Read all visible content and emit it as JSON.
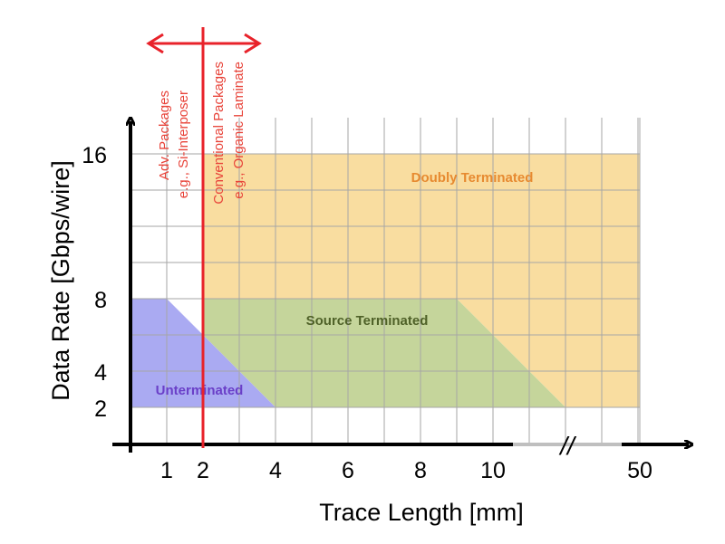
{
  "chart_data": {
    "type": "area",
    "xlabel": "Trace Length [mm]",
    "ylabel": "Data Rate [Gbps/wire]",
    "x_ticks": [
      "1",
      "2",
      "4",
      "6",
      "8",
      "10",
      "50"
    ],
    "y_ticks": [
      "2",
      "4",
      "8",
      "16"
    ],
    "axis_break_label": "//",
    "grid": true,
    "colors": {
      "unterminated": "#aaaaf2",
      "source_terminated": "#c5d59b",
      "doubly_terminated": "#f9dda0",
      "doubly_label": "#e78a30",
      "source_label": "#4f6128",
      "unterminated_label": "#6a3fc8",
      "boundary": "#e8222a",
      "grid": "#a6a6a6"
    },
    "regions": [
      {
        "name": "Unterminated",
        "points": [
          [
            0.0,
            8
          ],
          [
            1,
            8
          ],
          [
            4,
            2
          ],
          [
            0.0,
            2
          ]
        ]
      },
      {
        "name": "Source Terminated",
        "points": [
          [
            2,
            8
          ],
          [
            9,
            8
          ],
          [
            12,
            2
          ],
          [
            4,
            2
          ],
          [
            2,
            6
          ]
        ]
      },
      {
        "name": "Doubly Terminated",
        "points": [
          [
            2,
            16
          ],
          [
            50,
            16
          ],
          [
            50,
            2
          ],
          [
            12,
            2
          ],
          [
            9,
            8
          ],
          [
            2,
            8
          ]
        ]
      }
    ],
    "boundary": {
      "x": 2,
      "left_label": [
        "Adv. Packages",
        "e.g., Si-Interposer"
      ],
      "right_label": [
        "Conventional Packages",
        "e.g., Organic Laminate"
      ]
    }
  }
}
